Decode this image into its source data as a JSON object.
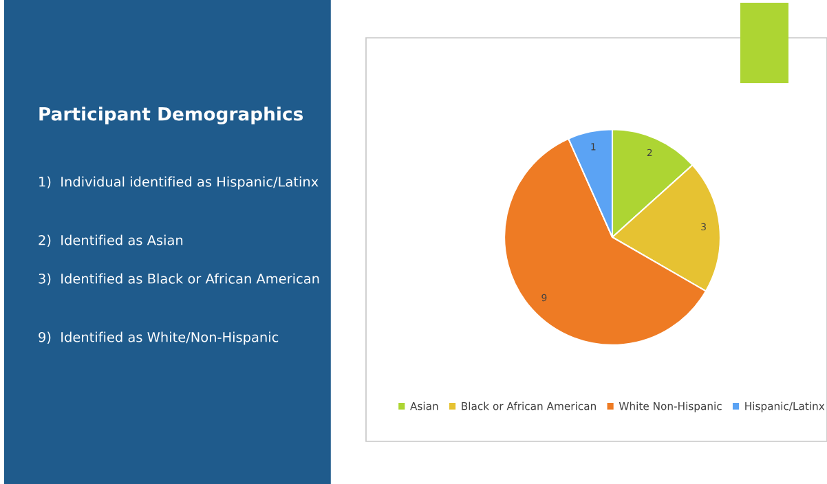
{
  "chart_data": {
    "type": "pie",
    "title": "Participant Demographics",
    "annotations": [
      "1)  Individual identified as Hispanic/Latinx",
      "2)  Identified as Asian",
      "3)  Identified as Black or African American",
      "9)  Identified as White/Non-Hispanic"
    ],
    "categories": [
      "Asian",
      "Black or African American",
      "White Non-Hispanic",
      "Hispanic/Latinx"
    ],
    "values": [
      2,
      3,
      9,
      1
    ],
    "colors": [
      "#add533",
      "#e6c232",
      "#ee7b24",
      "#5ba3f4"
    ],
    "data_labels": true,
    "legend": "bottom"
  }
}
